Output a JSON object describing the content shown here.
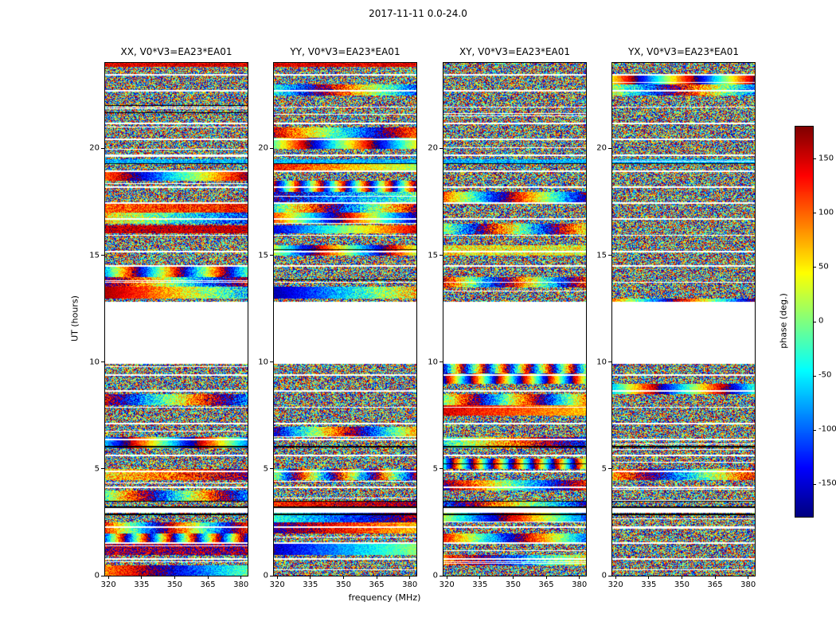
{
  "figure_title": "2017-11-11 0.0-24.0",
  "axes": {
    "xlabel": "frequency (MHz)",
    "ylabel": "UT (hours)"
  },
  "panels": [
    {
      "title": "XX, V0*V3=EA23*EA01",
      "pol": "XX"
    },
    {
      "title": "YY, V0*V3=EA23*EA01",
      "pol": "YY"
    },
    {
      "title": "XY, V0*V3=EA23*EA01",
      "pol": "XY"
    },
    {
      "title": "YX, V0*V3=EA23*EA01",
      "pol": "YX"
    }
  ],
  "colorbar": {
    "label": "phase (deg.)",
    "ticks": [
      150,
      100,
      50,
      0,
      -50,
      -100,
      -150
    ],
    "vmin": -180,
    "vmax": 180,
    "colormap": "jet"
  },
  "chart_data": {
    "type": "heatmap",
    "title": "2017-11-11 0.0-24.0",
    "xlabel": "frequency (MHz)",
    "ylabel": "UT (hours)",
    "value_label": "phase (deg.)",
    "value_range": [
      -180,
      180
    ],
    "colormap": "jet",
    "x_range_mhz": [
      318.5,
      383
    ],
    "x_ticks": [
      320,
      335,
      350,
      365,
      380
    ],
    "y_range_hours": [
      0,
      24
    ],
    "y_ticks": [
      0,
      5,
      10,
      15,
      20
    ],
    "panel_titles": [
      "XX, V0*V3=EA23*EA01",
      "YY, V0*V3=EA23*EA01",
      "XY, V0*V3=EA23*EA01",
      "YX, V0*V3=EA23*EA01"
    ],
    "description": "Dynamic spectra of visibility phase vs frequency and time for baseline V0*V3=EA23*EA01 in four polarization products; phases are mostly noise-like between -180 and 180 deg with white horizontal bands where no data were recorded",
    "no_data_gaps_hours": [
      [
        9.95,
        12.85
      ],
      [
        2.95,
        3.18
      ]
    ],
    "minor_gap_hours": [
      0.8,
      1.55,
      2.3,
      4.15,
      4.9,
      5.65,
      6.4,
      7.15,
      7.9,
      8.65,
      9.4,
      13.75,
      14.5,
      15.2,
      15.95,
      16.7,
      17.45,
      18.2,
      18.95,
      19.7,
      20.45,
      21.2,
      21.95,
      22.7,
      23.45
    ],
    "black_line_hours": [
      2.88,
      3.22,
      3.5,
      6.05,
      19.3
    ],
    "features": [
      {
        "hours": [
          13.0,
          13.55
        ],
        "pols": [
          "XX"
        ],
        "kind": "ramp_warm",
        "desc": "smooth phase gradient, deep red to yellow (calibrator scan)"
      },
      {
        "hours": [
          13.0,
          13.55
        ],
        "pols": [
          "YY"
        ],
        "kind": "ramp_cool",
        "desc": "smooth phase gradient, deep blue to cyan (calibrator scan)"
      },
      {
        "hours": [
          16.05,
          16.4
        ],
        "pols": [
          "XX"
        ],
        "kind": "flat_red",
        "desc": "coherent red phase band"
      },
      {
        "hours": [
          16.05,
          16.4
        ],
        "pols": [
          "YY"
        ],
        "kind": "ramp_full",
        "desc": "phase ramp blue to red"
      },
      {
        "hours": [
          19.32,
          19.5
        ],
        "pols": [
          "XX",
          "YY",
          "XY",
          "YX"
        ],
        "kind": "flat_cyan",
        "desc": "coherent cyan-green band"
      },
      {
        "hours": [
          23.84,
          24.0
        ],
        "pols": [
          "XX",
          "YY"
        ],
        "kind": "flat_warm",
        "desc": "warm orange-red band at top edge"
      }
    ]
  }
}
